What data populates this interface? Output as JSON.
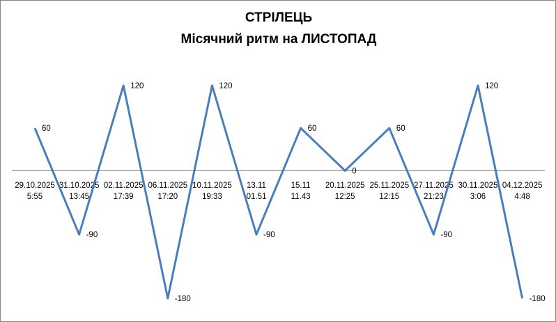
{
  "chart_data": {
    "type": "line",
    "title": "СТРІЛЕЦЬ",
    "subtitle": "Місячний ритм на ЛИСТОПАД",
    "categories": [
      [
        "29.10.2025",
        "5:55"
      ],
      [
        "31.10.2025",
        "13:45"
      ],
      [
        "02.11.2025",
        "17:39"
      ],
      [
        "06.11.2025",
        "17:20"
      ],
      [
        "10.11.2025",
        "19:33"
      ],
      [
        "13.11",
        "01.51"
      ],
      [
        "15.11",
        "11.43"
      ],
      [
        "20.11.2025",
        "12:25"
      ],
      [
        "25.11.2025",
        "12:15"
      ],
      [
        "27.11.2025",
        "21:23"
      ],
      [
        "30.11.2025",
        "3:06"
      ],
      [
        "04.12.2025",
        "4:48"
      ]
    ],
    "values": [
      60,
      -90,
      120,
      -180,
      120,
      -90,
      60,
      0,
      60,
      -90,
      120,
      -180
    ],
    "data_labels": true,
    "ylim": [
      -180,
      120
    ],
    "grid": false,
    "legend": "none",
    "colors": {
      "line": "#4a7ebb",
      "axis": "#868686"
    }
  }
}
